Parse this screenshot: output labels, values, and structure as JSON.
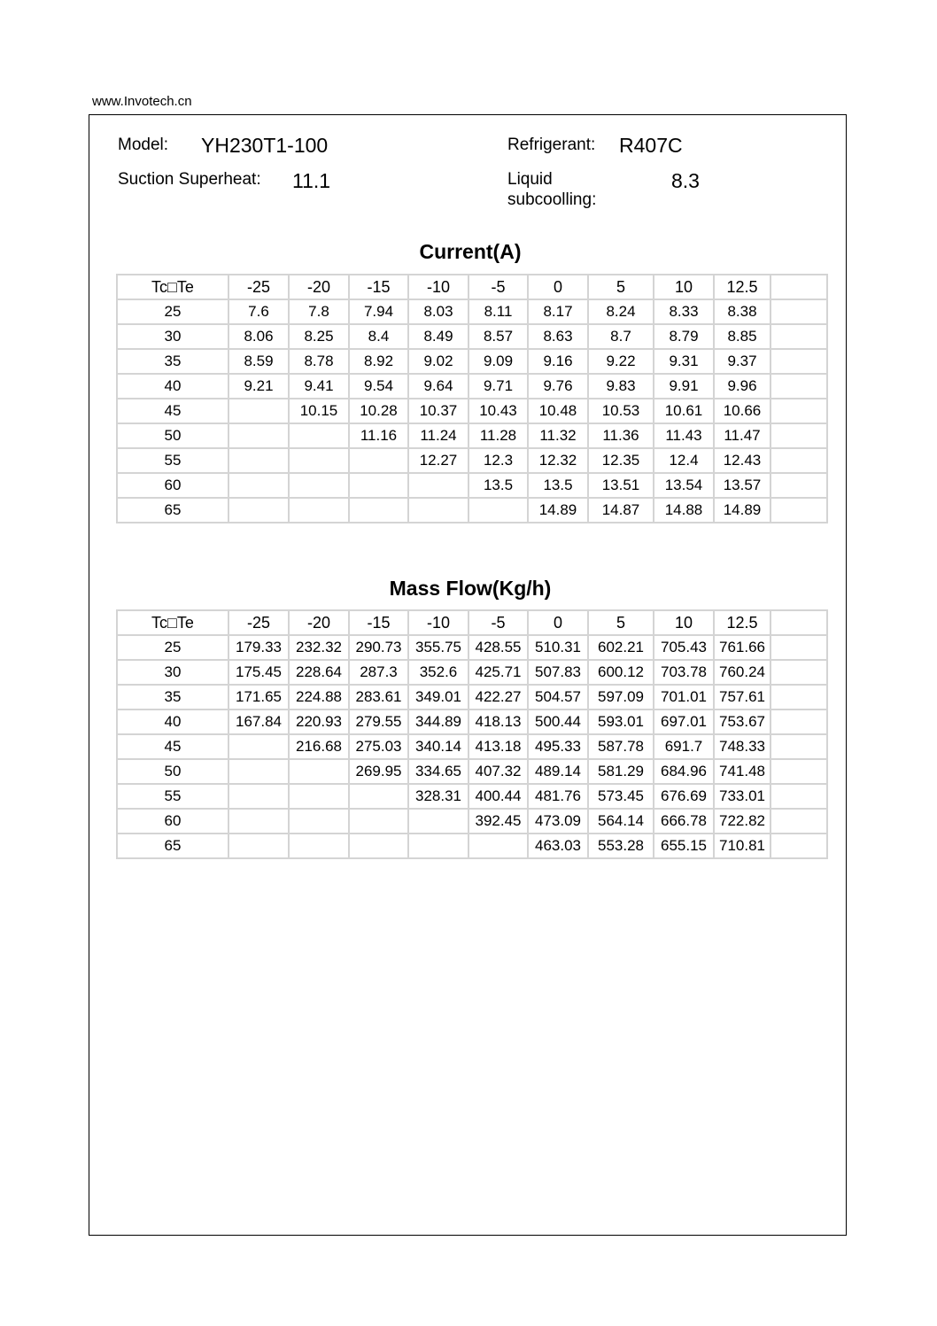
{
  "site": "www.Invotech.cn",
  "header": {
    "model_label": "Model:",
    "model_value": "YH230T1-100",
    "refrigerant_label": "Refrigerant:",
    "refrigerant_value": "R407C",
    "superheat_label": "Suction Superheat:",
    "superheat_value": "11.1",
    "subcooling_label_1": "Liquid",
    "subcooling_label_2": "subcoolling:",
    "subcooling_value": "8.3"
  },
  "tables": [
    {
      "title": "Current(A)",
      "corner": "Tc□Te",
      "columns": [
        "-25",
        "-20",
        "-15",
        "-10",
        "-5",
        "0",
        "5",
        "10",
        "12.5",
        ""
      ],
      "rows": [
        [
          "25",
          "7.6",
          "7.8",
          "7.94",
          "8.03",
          "8.11",
          "8.17",
          "8.24",
          "8.33",
          "8.38",
          ""
        ],
        [
          "30",
          "8.06",
          "8.25",
          "8.4",
          "8.49",
          "8.57",
          "8.63",
          "8.7",
          "8.79",
          "8.85",
          ""
        ],
        [
          "35",
          "8.59",
          "8.78",
          "8.92",
          "9.02",
          "9.09",
          "9.16",
          "9.22",
          "9.31",
          "9.37",
          ""
        ],
        [
          "40",
          "9.21",
          "9.41",
          "9.54",
          "9.64",
          "9.71",
          "9.76",
          "9.83",
          "9.91",
          "9.96",
          ""
        ],
        [
          "45",
          "",
          "10.15",
          "10.28",
          "10.37",
          "10.43",
          "10.48",
          "10.53",
          "10.61",
          "10.66",
          ""
        ],
        [
          "50",
          "",
          "",
          "11.16",
          "11.24",
          "11.28",
          "11.32",
          "11.36",
          "11.43",
          "11.47",
          ""
        ],
        [
          "55",
          "",
          "",
          "",
          "12.27",
          "12.3",
          "12.32",
          "12.35",
          "12.4",
          "12.43",
          ""
        ],
        [
          "60",
          "",
          "",
          "",
          "",
          "13.5",
          "13.5",
          "13.51",
          "13.54",
          "13.57",
          ""
        ],
        [
          "65",
          "",
          "",
          "",
          "",
          "",
          "14.89",
          "14.87",
          "14.88",
          "14.89",
          ""
        ]
      ]
    },
    {
      "title": "Mass Flow(Kg/h)",
      "corner": "Tc□Te",
      "columns": [
        "-25",
        "-20",
        "-15",
        "-10",
        "-5",
        "0",
        "5",
        "10",
        "12.5",
        ""
      ],
      "rows": [
        [
          "25",
          "179.33",
          "232.32",
          "290.73",
          "355.75",
          "428.55",
          "510.31",
          "602.21",
          "705.43",
          "761.66",
          ""
        ],
        [
          "30",
          "175.45",
          "228.64",
          "287.3",
          "352.6",
          "425.71",
          "507.83",
          "600.12",
          "703.78",
          "760.24",
          ""
        ],
        [
          "35",
          "171.65",
          "224.88",
          "283.61",
          "349.01",
          "422.27",
          "504.57",
          "597.09",
          "701.01",
          "757.61",
          ""
        ],
        [
          "40",
          "167.84",
          "220.93",
          "279.55",
          "344.89",
          "418.13",
          "500.44",
          "593.01",
          "697.01",
          "753.67",
          ""
        ],
        [
          "45",
          "",
          "216.68",
          "275.03",
          "340.14",
          "413.18",
          "495.33",
          "587.78",
          "691.7",
          "748.33",
          ""
        ],
        [
          "50",
          "",
          "",
          "269.95",
          "334.65",
          "407.32",
          "489.14",
          "581.29",
          "684.96",
          "741.48",
          ""
        ],
        [
          "55",
          "",
          "",
          "",
          "328.31",
          "400.44",
          "481.76",
          "573.45",
          "676.69",
          "733.01",
          ""
        ],
        [
          "60",
          "",
          "",
          "",
          "",
          "392.45",
          "473.09",
          "564.14",
          "666.78",
          "722.82",
          ""
        ],
        [
          "65",
          "",
          "",
          "",
          "",
          "",
          "463.03",
          "553.28",
          "655.15",
          "710.81",
          ""
        ]
      ]
    }
  ]
}
